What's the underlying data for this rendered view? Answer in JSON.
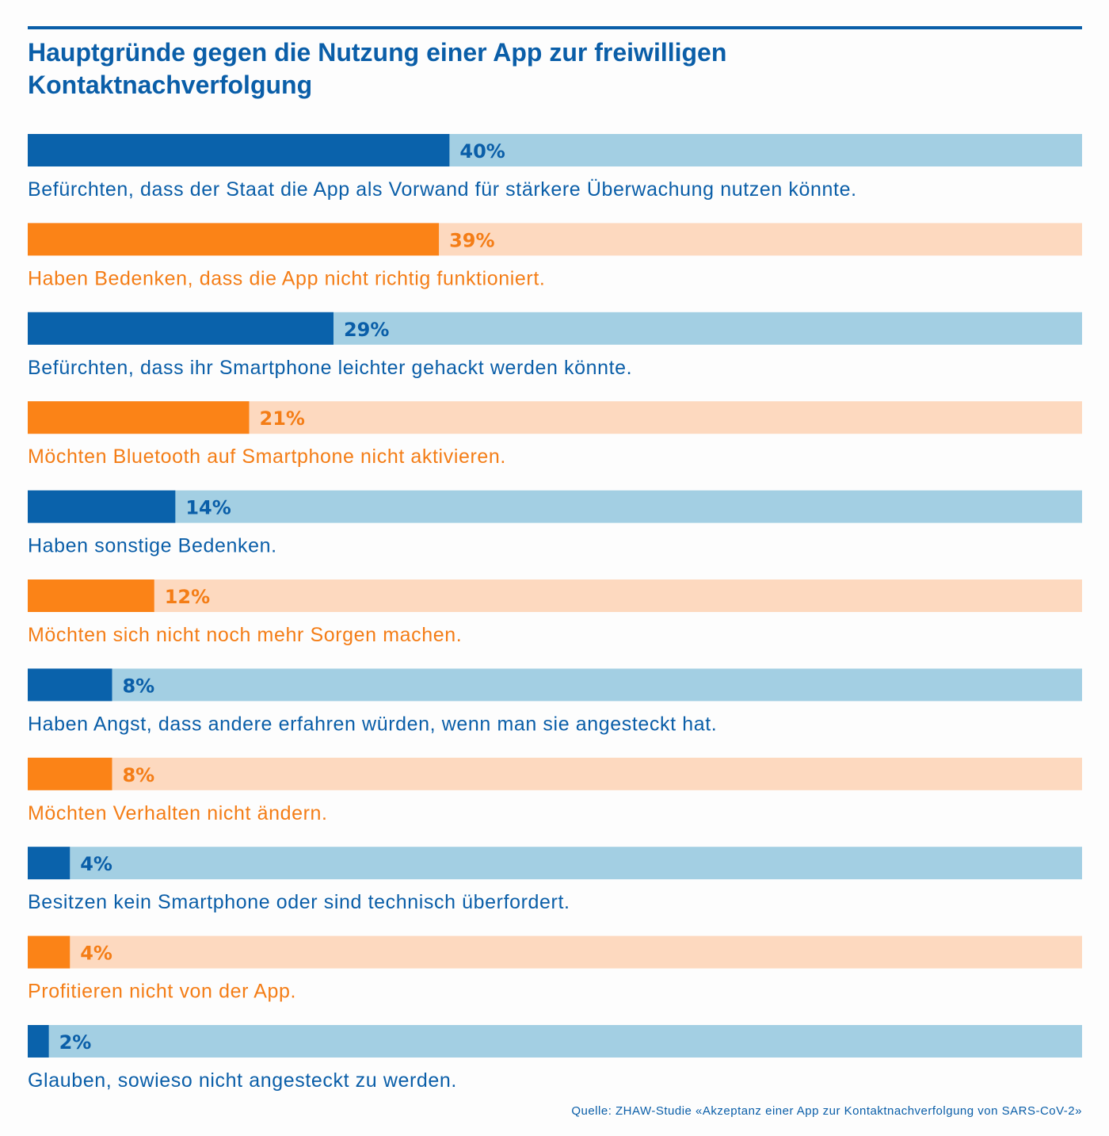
{
  "chart_data": {
    "type": "bar",
    "orientation": "horizontal",
    "title": "Hauptgründe gegen die Nutzung einer App zur freiwilligen Kontaktnachverfolgung",
    "title_lines": [
      "Hauptgründe gegen die Nutzung einer App zur freiwilligen",
      "Kontaktnachverfolgung"
    ],
    "xlim": [
      0,
      100
    ],
    "unit": "%",
    "grid": false,
    "legend": "none",
    "categories": [
      "Befürchten, dass der Staat die App als Vorwand für stärkere Überwachung nutzen könnte.",
      "Haben Bedenken, dass die App nicht richtig funktioniert.",
      "Befürchten, dass ihr Smartphone leichter gehackt werden könnte.",
      "Möchten Bluetooth auf Smartphone nicht aktivieren.",
      "Haben sonstige Bedenken.",
      "Möchten sich nicht noch mehr Sorgen machen.",
      "Haben Angst, dass andere erfahren würden, wenn man sie angesteckt hat.",
      "Möchten Verhalten nicht ändern.",
      "Besitzen kein Smartphone oder sind technisch überfordert.",
      "Profitieren nicht von der App.",
      "Glauben, sowieso nicht angesteckt zu werden."
    ],
    "values": [
      40,
      39,
      29,
      21,
      14,
      12,
      8,
      8,
      4,
      4,
      2
    ],
    "value_labels": [
      "40%",
      "39%",
      "29%",
      "21%",
      "14%",
      "12%",
      "8%",
      "8%",
      "4%",
      "4%",
      "2%"
    ],
    "source": "Quelle: ZHAW-Studie «Akzeptanz einer App zur Kontaktnachverfolgung von SARS-CoV-2»"
  },
  "colors": {
    "title": "#0a5ea8",
    "rule": "#0a5ea8",
    "blue_fill": "#0a62ab",
    "blue_track": "#a3cfe3",
    "blue_text": "#0a5ea8",
    "orange_fill": "#fb8317",
    "orange_track": "#fdd9bf",
    "orange_text": "#f47d16",
    "source_text": "#0a5ea8"
  }
}
